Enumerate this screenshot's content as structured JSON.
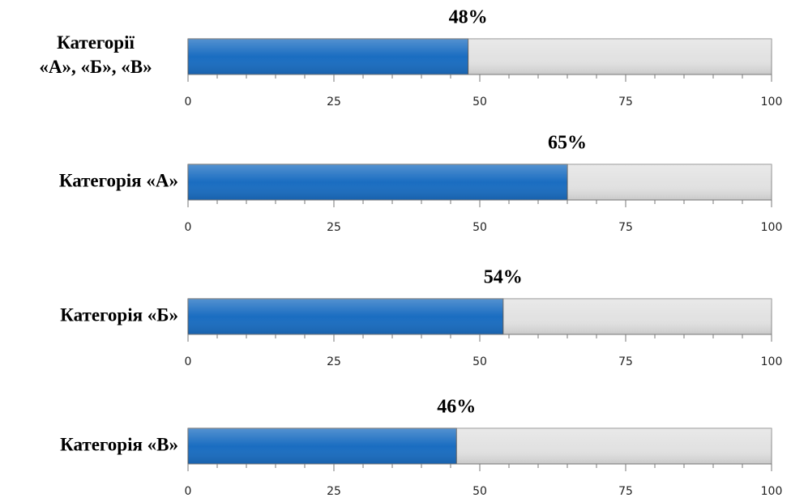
{
  "chart_data": [
    {
      "type": "bar",
      "categories": [
        "Категорії\n«А», «Б», «В»"
      ],
      "values": [
        48
      ],
      "value_labels": [
        "48%"
      ],
      "color": "#1a6dc1",
      "track_color": "#e2e2e2",
      "xlim": [
        0,
        100
      ],
      "xticks": [
        0,
        25,
        50,
        75,
        100
      ],
      "minor_xticks": [
        5,
        10,
        15,
        20,
        30,
        35,
        40,
        45,
        55,
        60,
        65,
        70,
        80,
        85,
        90,
        95
      ]
    },
    {
      "type": "bar",
      "categories": [
        "Категорія «А»"
      ],
      "values": [
        65
      ],
      "value_labels": [
        "65%"
      ],
      "color": "#1a6dc1",
      "track_color": "#e2e2e2",
      "xlim": [
        0,
        100
      ],
      "xticks": [
        0,
        25,
        50,
        75,
        100
      ],
      "minor_xticks": [
        5,
        10,
        15,
        20,
        30,
        35,
        40,
        45,
        55,
        60,
        65,
        70,
        80,
        85,
        90,
        95
      ]
    },
    {
      "type": "bar",
      "categories": [
        "Категорія «Б»"
      ],
      "values": [
        54
      ],
      "value_labels": [
        "54%"
      ],
      "color": "#1a6dc1",
      "track_color": "#e2e2e2",
      "xlim": [
        0,
        100
      ],
      "xticks": [
        0,
        25,
        50,
        75,
        100
      ],
      "minor_xticks": [
        5,
        10,
        15,
        20,
        30,
        35,
        40,
        45,
        55,
        60,
        65,
        70,
        80,
        85,
        90,
        95
      ]
    },
    {
      "type": "bar",
      "categories": [
        "Категорія «В»"
      ],
      "values": [
        46
      ],
      "value_labels": [
        "46%"
      ],
      "color": "#1a6dc1",
      "track_color": "#e2e2e2",
      "xlim": [
        0,
        100
      ],
      "xticks": [
        0,
        25,
        50,
        75,
        100
      ],
      "minor_xticks": [
        5,
        10,
        15,
        20,
        30,
        35,
        40,
        45,
        55,
        60,
        65,
        70,
        80,
        85,
        90,
        95
      ]
    }
  ]
}
